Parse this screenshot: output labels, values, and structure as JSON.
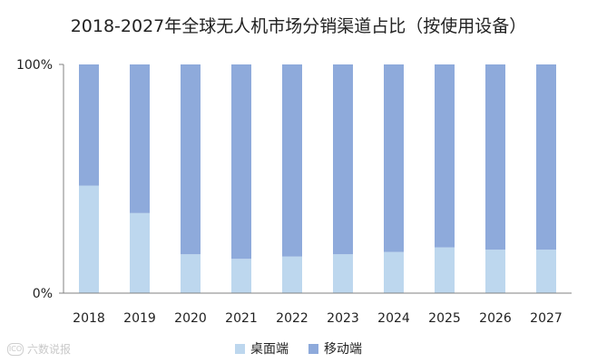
{
  "chart_data": {
    "type": "bar",
    "stacked": true,
    "title": "2018-2027年全球无人机市场分销渠道占比（按使用设备）",
    "categories": [
      "2018",
      "2019",
      "2020",
      "2021",
      "2022",
      "2023",
      "2024",
      "2025",
      "2026",
      "2027"
    ],
    "series": [
      {
        "name": "桌面端",
        "color": "#bdd7ee",
        "values": [
          47,
          35,
          17,
          15,
          16,
          17,
          18,
          20,
          19,
          19
        ]
      },
      {
        "name": "移动端",
        "color": "#8eaadb",
        "values": [
          53,
          65,
          83,
          85,
          84,
          83,
          82,
          80,
          81,
          81
        ]
      }
    ],
    "ylim": [
      0,
      100
    ],
    "yticks": [
      "0%",
      "100%"
    ],
    "legend_position": "bottom"
  },
  "watermark": {
    "logo": "ICO",
    "text": "六数说报"
  }
}
